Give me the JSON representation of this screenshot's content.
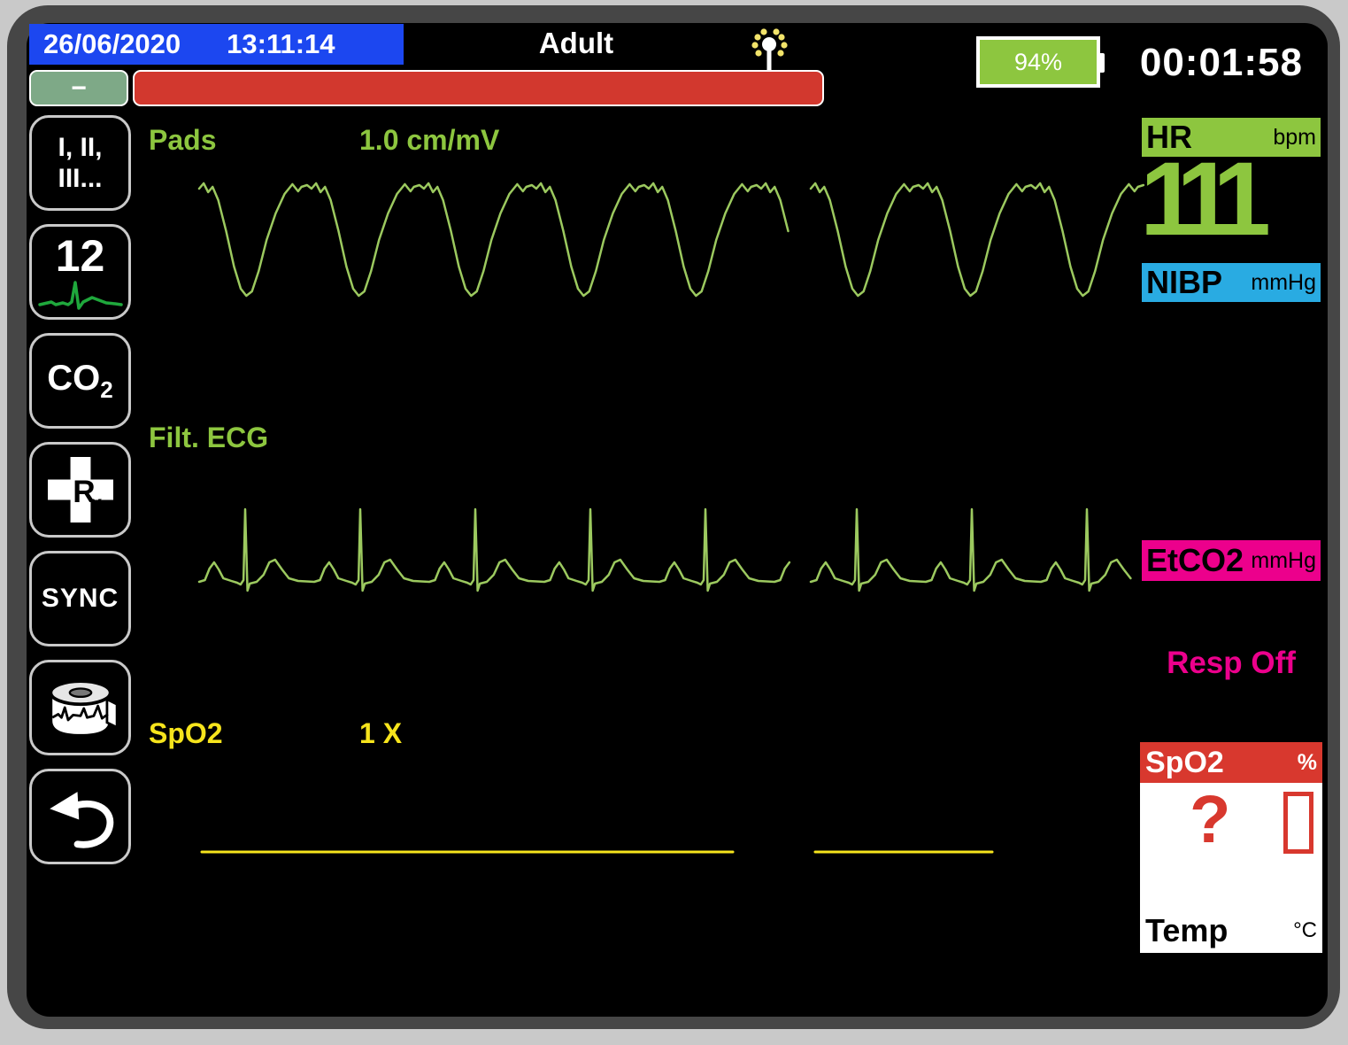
{
  "device": {
    "top_bar": {
      "date": "26/06/2020",
      "time": "13:11:14",
      "patient_mode": "Adult",
      "battery_percent": "94%",
      "session_timer": "00:01:58"
    },
    "event_bar": {
      "minimize_label": "−"
    },
    "sidebar": [
      {
        "id": "leads",
        "label_line1": "I, II,",
        "label_line2": "III..."
      },
      {
        "id": "twelve-lead",
        "label": "12"
      },
      {
        "id": "co2",
        "label": "CO",
        "subscript": "2"
      },
      {
        "id": "medication"
      },
      {
        "id": "sync",
        "label": "SYNC"
      },
      {
        "id": "print"
      },
      {
        "id": "back"
      }
    ],
    "traces": {
      "pads": {
        "label": "Pads",
        "scale": "1.0 cm/mV"
      },
      "filt_ecg": {
        "label": "Filt. ECG"
      },
      "spo2": {
        "label": "SpO2",
        "scale": "1 X"
      }
    },
    "vitals": {
      "hr": {
        "label": "HR",
        "unit": "bpm",
        "value": "111"
      },
      "nibp": {
        "label": "NIBP",
        "unit": "mmHg"
      },
      "etco2": {
        "label": "EtCO2",
        "unit": "mmHg"
      },
      "resp": {
        "status": "Resp Off"
      },
      "spo2": {
        "label": "SpO2",
        "unit": "%",
        "value": "?"
      },
      "temp": {
        "label": "Temp",
        "unit": "°C"
      }
    },
    "colors": {
      "accent_green": "#8DC63F",
      "trace_green": "#9CC95F",
      "cyan": "#29ABE2",
      "magenta": "#EC008C",
      "red": "#D8382E",
      "yellow": "#F6E41C",
      "blue": "#1C47F0",
      "sage_green": "#7EA987"
    },
    "waveforms": [
      {
        "name": "pads-ecg-trace",
        "color": "#9CC95F",
        "width": 2.5,
        "baseline": 271,
        "period": 127,
        "segments": [
          [
            225,
            892
          ],
          [
            916,
            1293
          ]
        ],
        "shape": "pads"
      },
      {
        "name": "filtered-ecg-trace",
        "color": "#9CC95F",
        "width": 2.5,
        "baseline": 655,
        "period": 130,
        "segments": [
          [
            225,
            892
          ],
          [
            916,
            1286
          ]
        ],
        "shape": "ecg"
      },
      {
        "name": "spo2-trace",
        "color": "#F6E41C",
        "width": 3,
        "baseline": 962,
        "period": 200,
        "segments": [
          [
            228,
            896
          ],
          [
            921,
            1286
          ]
        ],
        "shape": "flat"
      }
    ],
    "wave_shapes": {
      "pads": [
        [
          0,
          -58
        ],
        [
          0.04,
          -64
        ],
        [
          0.08,
          -54
        ],
        [
          0.12,
          -60
        ],
        [
          0.17,
          -45
        ],
        [
          0.24,
          -10
        ],
        [
          0.31,
          30
        ],
        [
          0.37,
          55
        ],
        [
          0.42,
          63
        ],
        [
          0.47,
          58
        ],
        [
          0.53,
          35
        ],
        [
          0.6,
          0
        ],
        [
          0.68,
          -30
        ],
        [
          0.76,
          -52
        ],
        [
          0.83,
          -63
        ],
        [
          0.88,
          -55
        ],
        [
          0.91,
          -60
        ],
        [
          0.96,
          -62
        ],
        [
          1,
          -58
        ]
      ],
      "ecg": [
        [
          0,
          2
        ],
        [
          0.05,
          0
        ],
        [
          0.09,
          -13
        ],
        [
          0.13,
          -20
        ],
        [
          0.17,
          -12
        ],
        [
          0.21,
          -2
        ],
        [
          0.28,
          1
        ],
        [
          0.33,
          3
        ],
        [
          0.36,
          5
        ],
        [
          0.385,
          0
        ],
        [
          0.4,
          -80
        ],
        [
          0.42,
          12
        ],
        [
          0.44,
          4
        ],
        [
          0.5,
          2
        ],
        [
          0.56,
          -6
        ],
        [
          0.61,
          -20
        ],
        [
          0.66,
          -23
        ],
        [
          0.72,
          -12
        ],
        [
          0.78,
          -2
        ],
        [
          0.86,
          1
        ],
        [
          1,
          2
        ]
      ],
      "flat": [
        [
          0,
          0
        ],
        [
          1,
          0
        ]
      ]
    }
  }
}
